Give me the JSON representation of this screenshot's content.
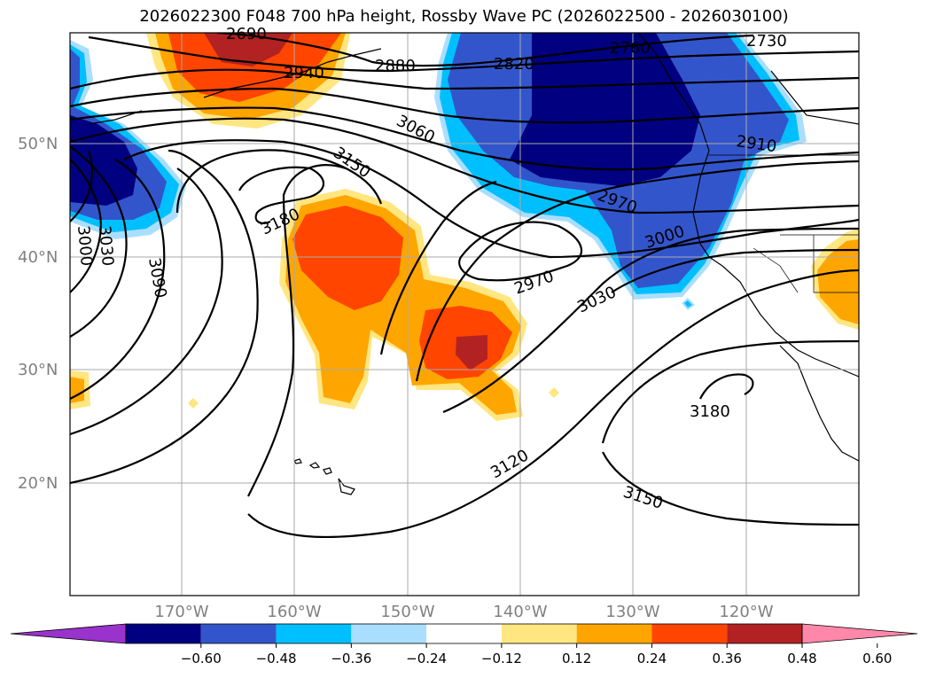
{
  "title": "2026022300 F048 700 hPa height, Rossby Wave PC (2026022500 - 2026030100)",
  "lat_labels": [
    "50°N",
    "40°N",
    "30°N",
    "20°N"
  ],
  "lon_labels": [
    "170°W",
    "160°W",
    "150°W",
    "140°W",
    "130°W",
    "120°W"
  ],
  "contour_labels": [
    "2690",
    "2760",
    "2730",
    "2820",
    "2940",
    "2880",
    "3060",
    "2910",
    "3150",
    "3180",
    "2970",
    "3000",
    "3000",
    "3030",
    "3090",
    "2970",
    "3030",
    "3180",
    "3120",
    "3150"
  ],
  "colorbar": {
    "ticks": [
      "−0.60",
      "−0.48",
      "−0.36",
      "−0.24",
      "−0.12",
      "0.12",
      "0.24",
      "0.36",
      "0.48",
      "0.60"
    ],
    "colors": [
      "#9933cc",
      "#000080",
      "#3355cc",
      "#00bfff",
      "#aadeff",
      "#ffffff",
      "#ffe680",
      "#ffa500",
      "#ff4500",
      "#b22222",
      "#ff88aa"
    ]
  }
}
